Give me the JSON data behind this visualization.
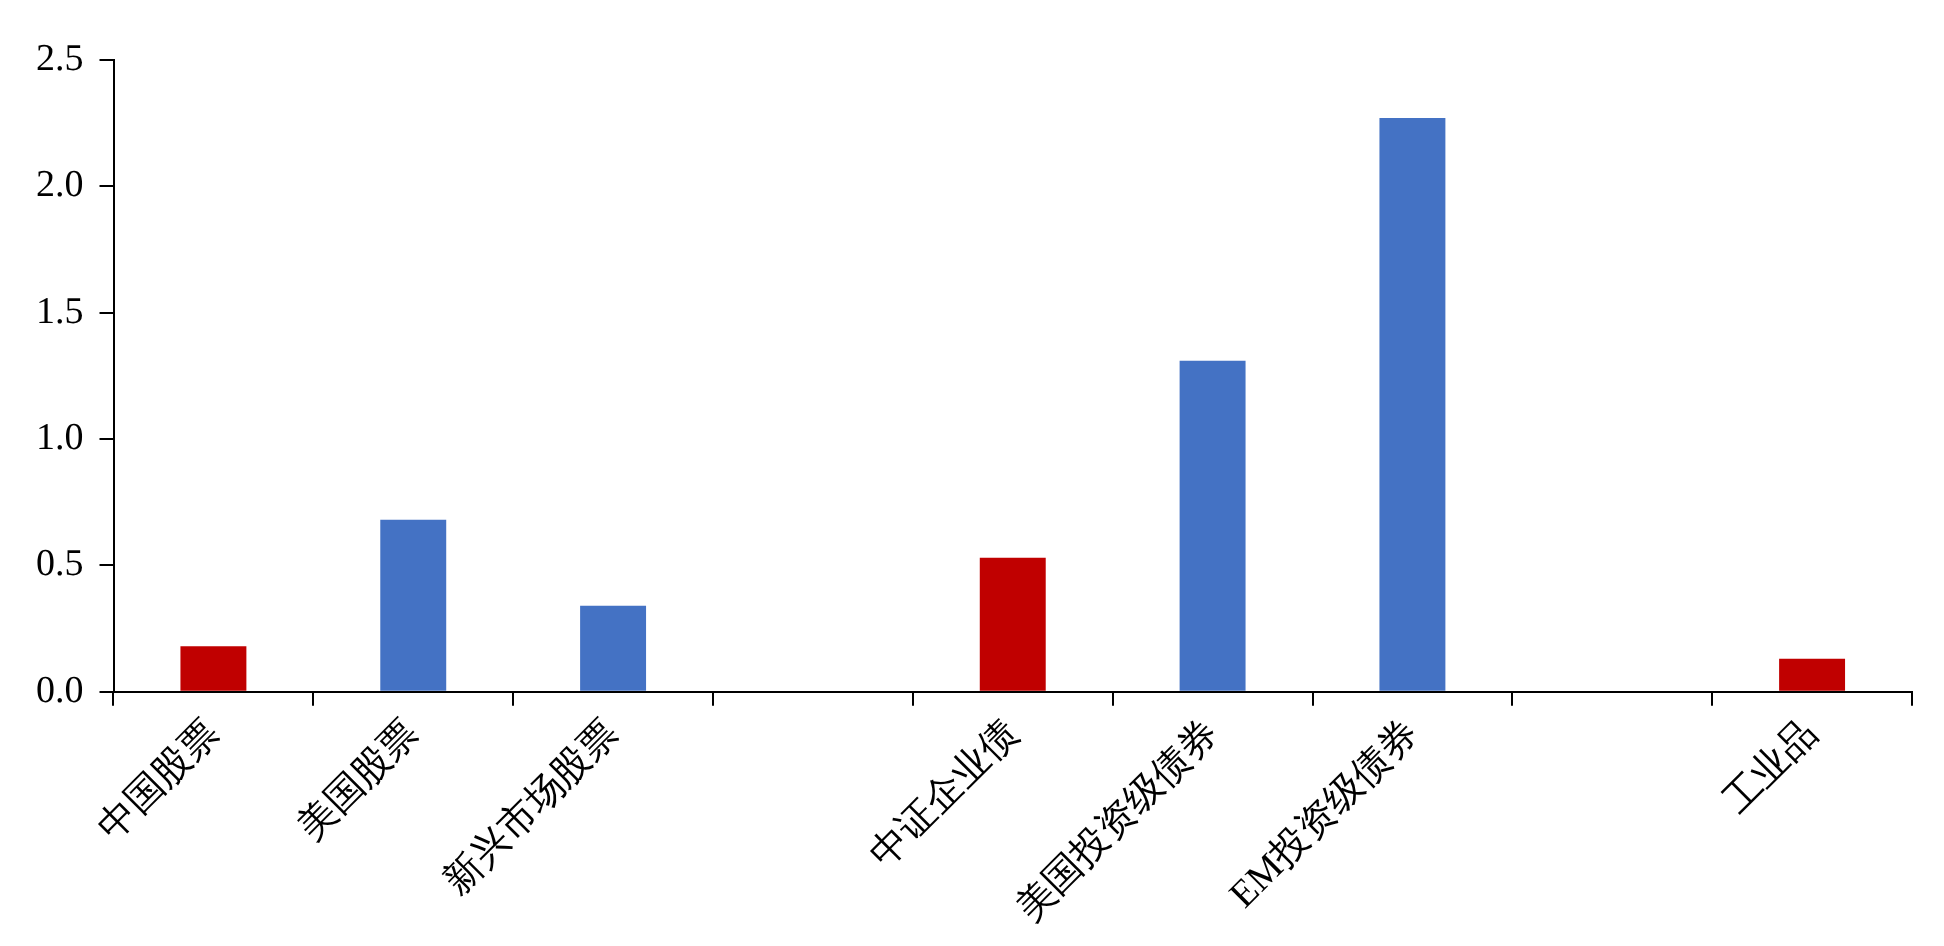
{
  "chart_data": {
    "type": "bar",
    "categories": [
      "中国股票",
      "美国股票",
      "新兴市场股票",
      null,
      "中证企业债",
      "美国投资级债券",
      "EM投资级债券",
      null,
      "工业品"
    ],
    "values": [
      0.18,
      0.68,
      0.34,
      null,
      0.53,
      1.31,
      2.27,
      null,
      0.13
    ],
    "colors": [
      "#c00000",
      "#4472c4",
      "#4472c4",
      null,
      "#c00000",
      "#4472c4",
      "#4472c4",
      null,
      "#c00000"
    ],
    "ylim": [
      0,
      2.5
    ],
    "yticks": [
      {
        "value": 0,
        "label": "0.0"
      },
      {
        "value": 0.5,
        "label": "0.5"
      },
      {
        "value": 1,
        "label": "1.0"
      },
      {
        "value": 1.5,
        "label": "1.5"
      },
      {
        "value": 2,
        "label": "2.0"
      },
      {
        "value": 2.5,
        "label": "2.5"
      }
    ],
    "grid": false,
    "legend": false
  }
}
